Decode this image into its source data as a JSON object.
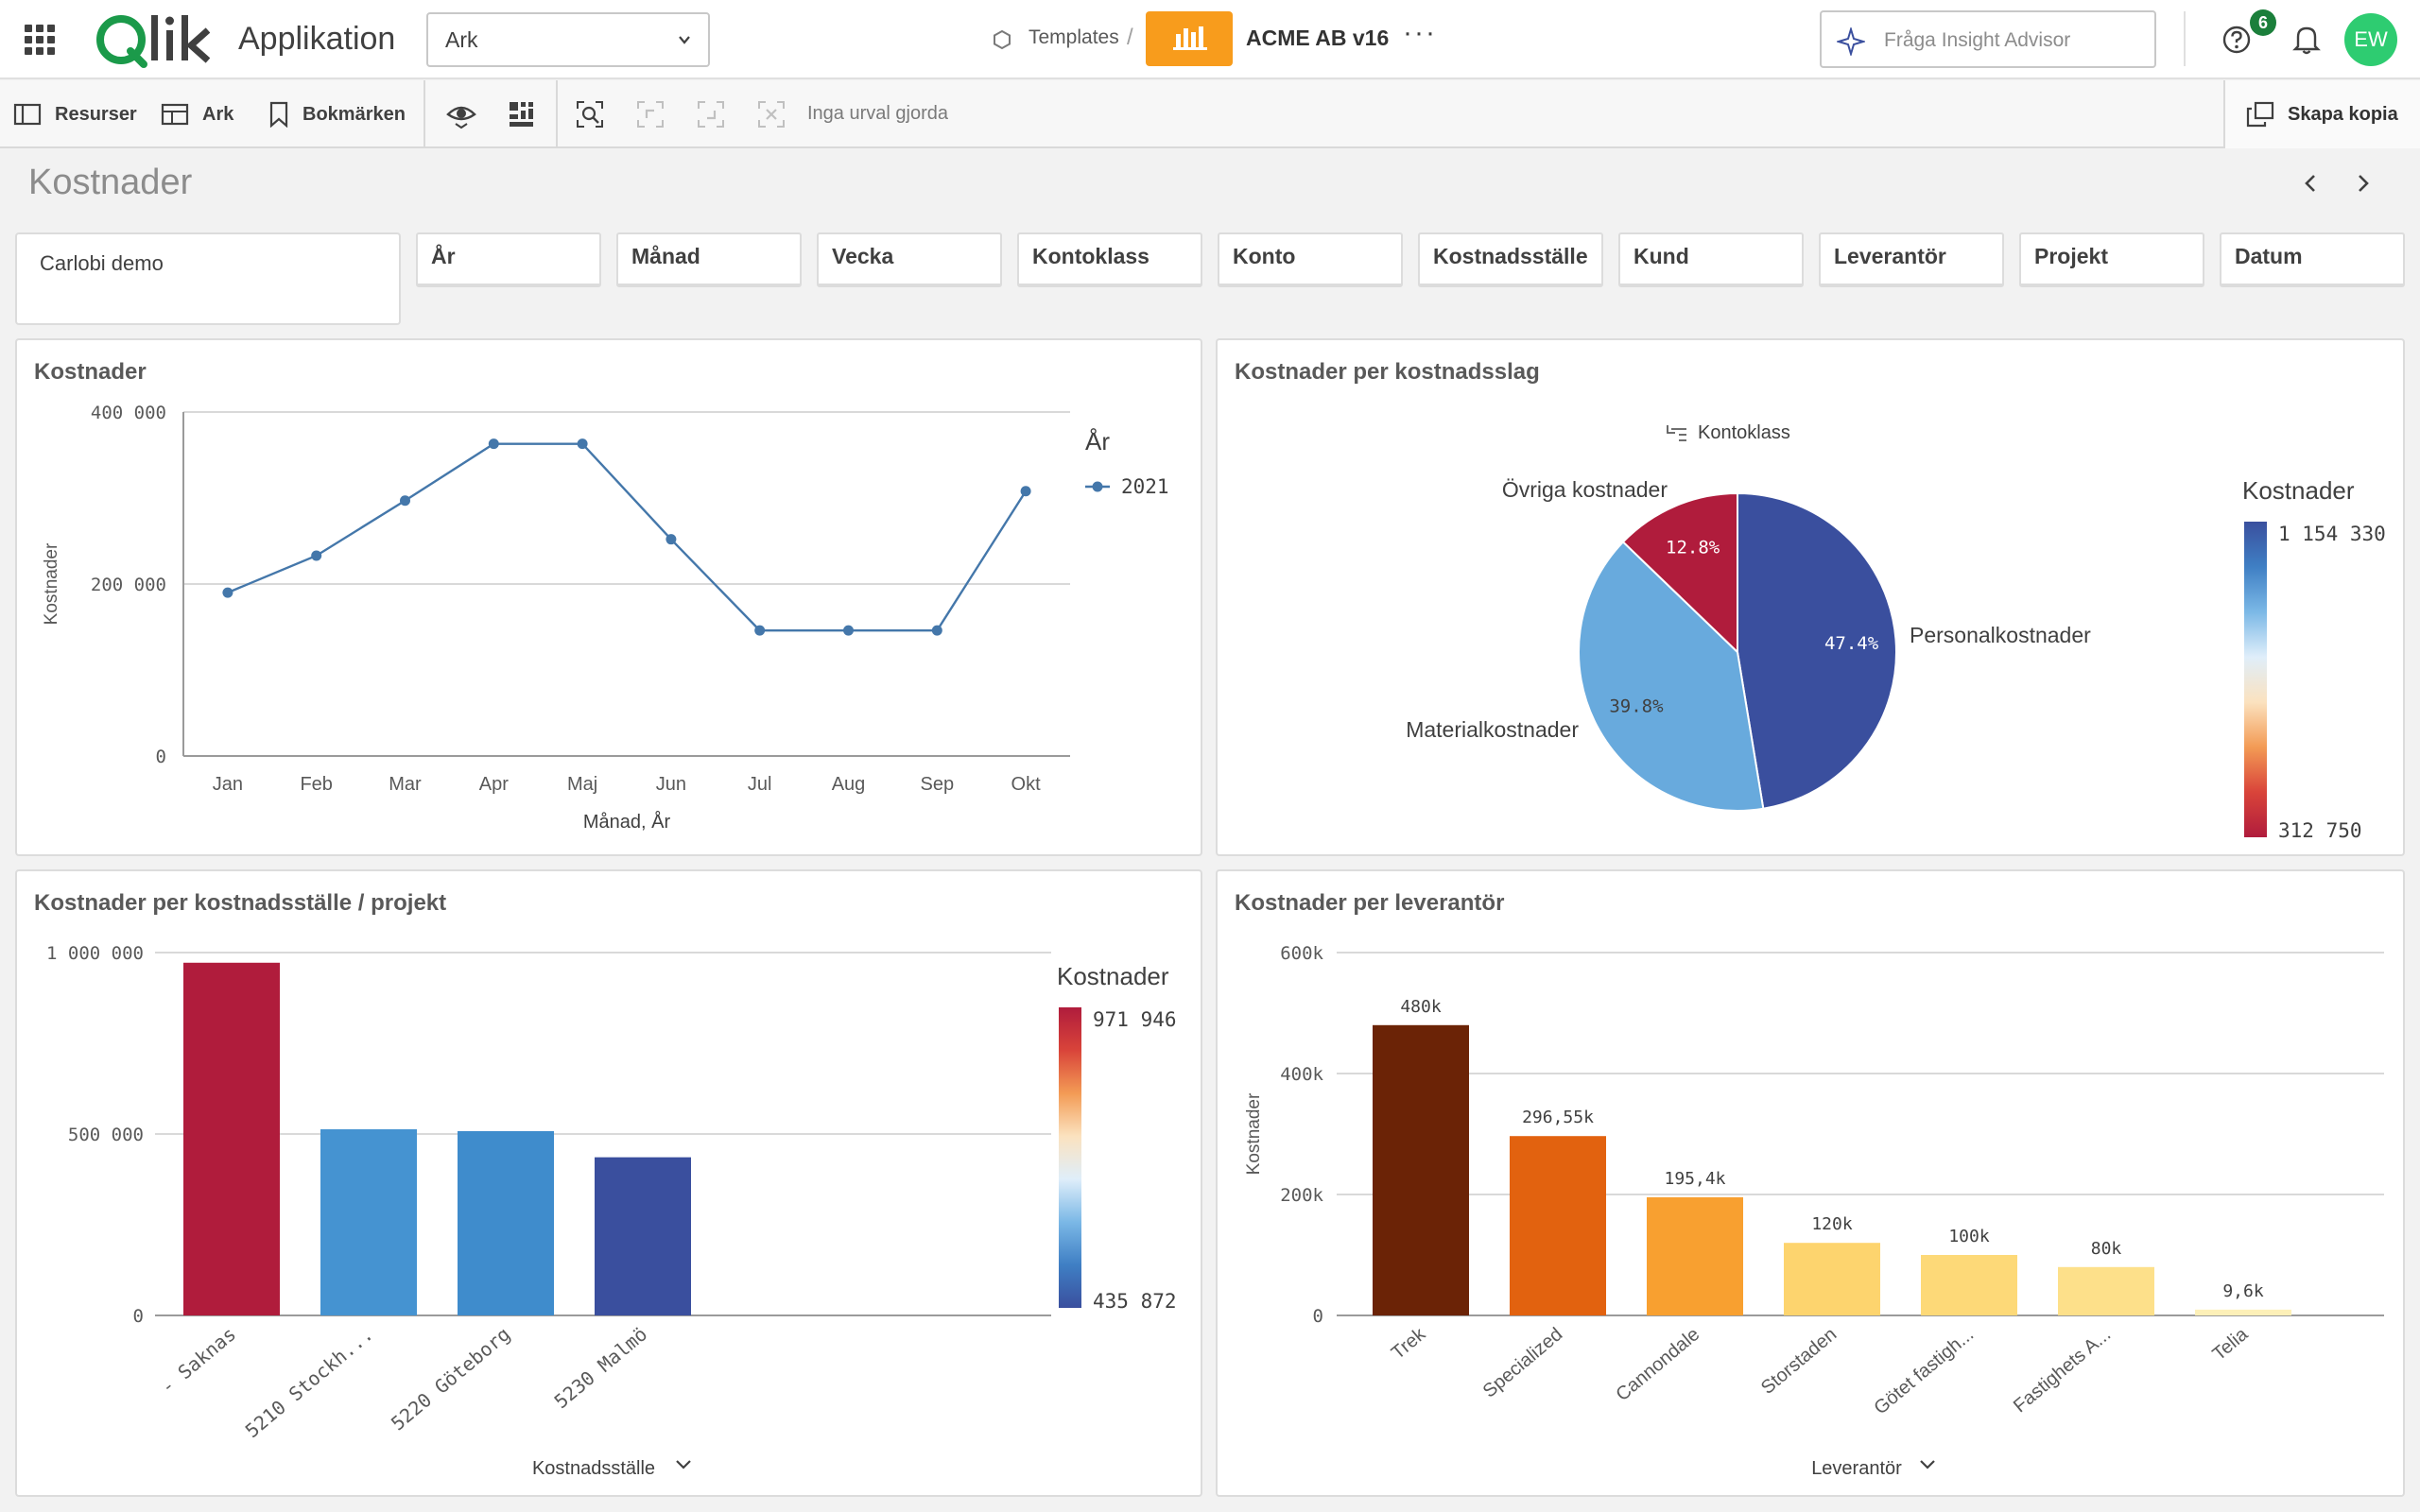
{
  "header": {
    "app_title": "Applikation",
    "sheet_selector": "Ark",
    "templates_label": "Templates",
    "breadcrumb_sep": "/",
    "app_name": "ACME AB v16",
    "more": "···",
    "insight_placeholder": "Fråga Insight Advisor",
    "notification_count": "6",
    "avatar_initials": "EW"
  },
  "toolbar": {
    "resources": "Resurser",
    "sheets": "Ark",
    "bookmarks": "Bokmärken",
    "no_selections": "Inga urval gjorda",
    "create_copy": "Skapa kopia"
  },
  "sheet": {
    "title": "Kostnader"
  },
  "filters": {
    "company": "Carlobi demo",
    "items": [
      "År",
      "Månad",
      "Vecka",
      "Kontoklass",
      "Konto",
      "Kostnadsställe",
      "Kund",
      "Leverantör",
      "Projekt",
      "Datum"
    ]
  },
  "colors": {
    "accent": "#f89c1c",
    "line": "#4477aa",
    "avatar": "#2ecc71",
    "badge": "#1b7f3b"
  },
  "chart_data": [
    {
      "type": "line",
      "title": "Kostnader",
      "xlabel": "Månad, År",
      "ylabel": "Kostnader",
      "categories": [
        "Jan",
        "Feb",
        "Mar",
        "Apr",
        "Maj",
        "Jun",
        "Jul",
        "Aug",
        "Sep",
        "Okt"
      ],
      "series": [
        {
          "name": "2021",
          "values": [
            190000,
            233000,
            297000,
            363000,
            363000,
            252000,
            146000,
            146000,
            146000,
            308000
          ]
        }
      ],
      "ylim": [
        0,
        400000
      ],
      "yticks": [
        "0",
        "200 000",
        "400 000"
      ],
      "legend_title": "År",
      "legend": "right",
      "grid": true
    },
    {
      "type": "pie",
      "title": "Kostnader per kostnadsslag",
      "dimension_label": "Kontoklass",
      "slices": [
        {
          "label": "Personalkostnader",
          "value": 47.4,
          "display": "47.4%",
          "color": "#3a4f9e"
        },
        {
          "label": "Materialkostnader",
          "value": 39.8,
          "display": "39.8%",
          "color": "#68aadd"
        },
        {
          "label": "Övriga kostnader",
          "value": 12.8,
          "display": "12.8%",
          "color": "#b01c3c"
        }
      ],
      "legend_title": "Kostnader",
      "legend_max": "1 154 330",
      "legend_min": "312 750",
      "legend": "right"
    },
    {
      "type": "bar",
      "title": "Kostnader per kostnadsställe / projekt",
      "xlabel": "Kostnadsställe",
      "categories": [
        "- Saknas",
        "5210 Stockh...",
        "5220 Göteborg",
        "5230 Malmö"
      ],
      "values": [
        971946,
        513000,
        508000,
        435872
      ],
      "colors": [
        "#b01c3c",
        "#4593d1",
        "#3f8ccc",
        "#3a4f9e"
      ],
      "ylim": [
        0,
        1000000
      ],
      "yticks": [
        "0",
        "500 000",
        "1 000 000"
      ],
      "legend_title": "Kostnader",
      "legend_max": "971 946",
      "legend_min": "435 872",
      "legend": "right",
      "grid": true
    },
    {
      "type": "bar",
      "title": "Kostnader per leverantör",
      "xlabel": "Leverantör",
      "ylabel": "Kostnader",
      "categories": [
        "Trek",
        "Specialized",
        "Cannondale",
        "Storstaden",
        "Götet fastigh...",
        "Fastighets A...",
        "Telia"
      ],
      "values": [
        480000,
        296550,
        195400,
        120000,
        100000,
        80000,
        9600
      ],
      "labels": [
        "480k",
        "296,55k",
        "195,4k",
        "120k",
        "100k",
        "80k",
        "9,6k"
      ],
      "colors": [
        "#6b2306",
        "#e2620f",
        "#f8a030",
        "#fdd46e",
        "#fdd978",
        "#fde08a",
        "#fdf0b8"
      ],
      "ylim": [
        0,
        600000
      ],
      "yticks": [
        "0",
        "200k",
        "400k",
        "600k"
      ],
      "grid": true
    }
  ]
}
